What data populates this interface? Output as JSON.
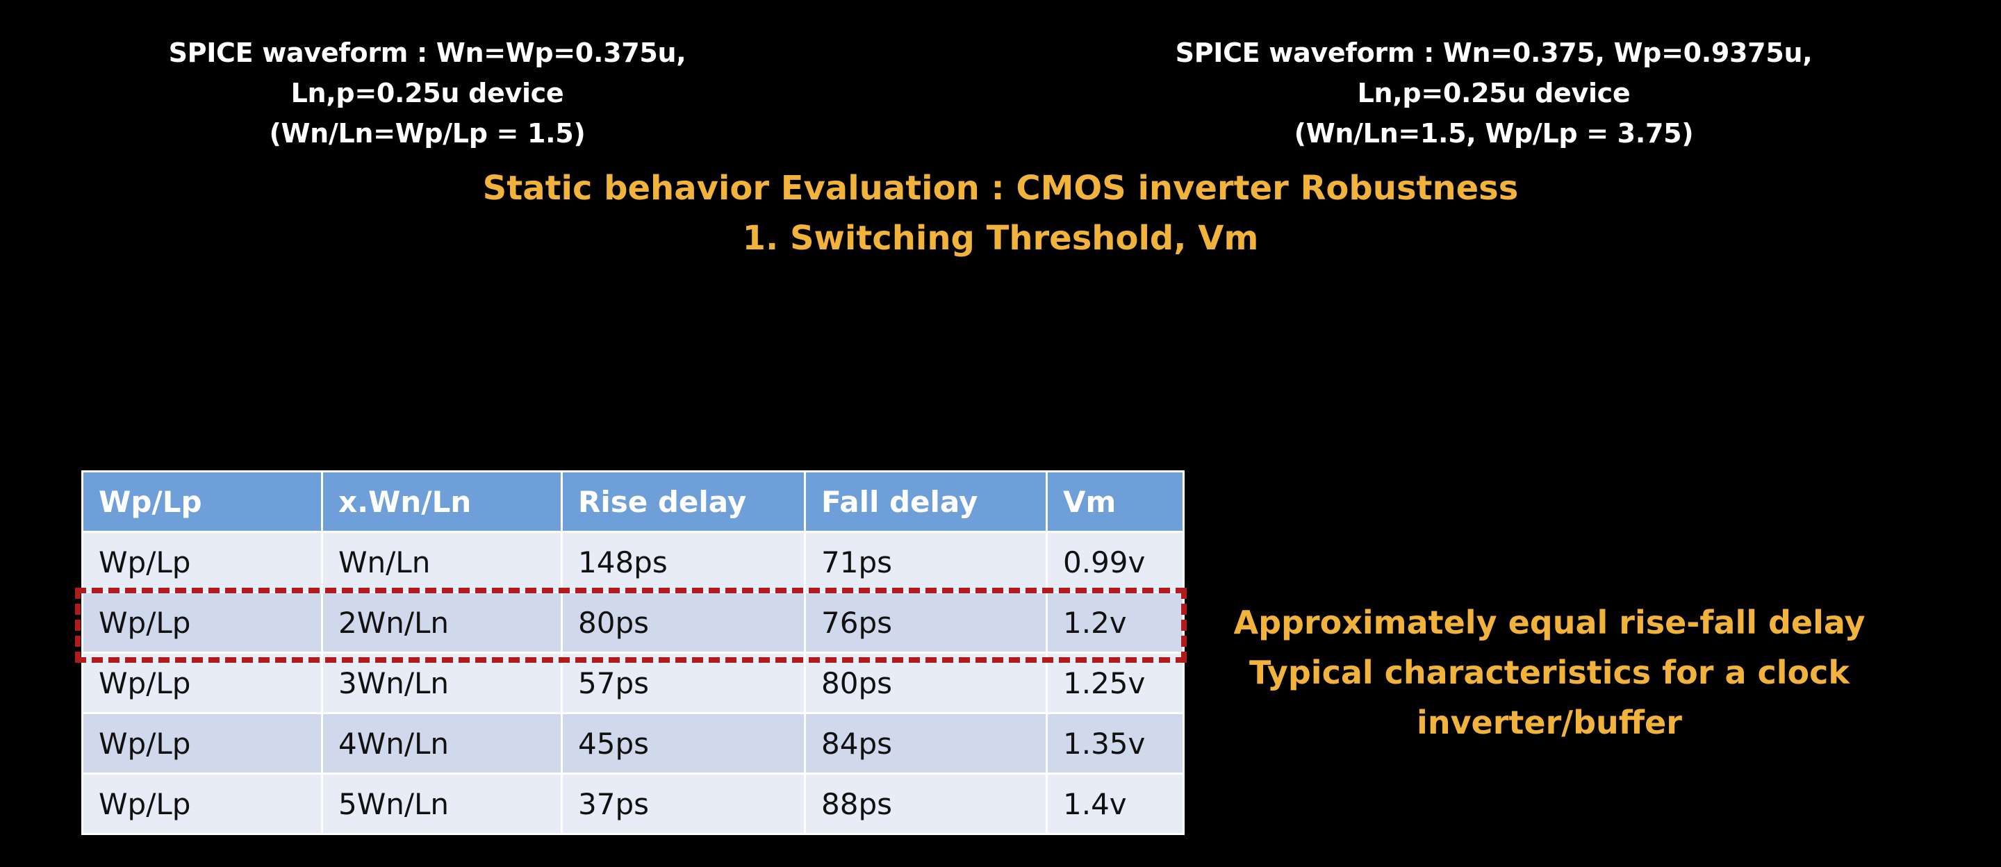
{
  "captions": {
    "left": {
      "line1": "SPICE waveform : Wn=Wp=0.375u,",
      "line2": "Ln,p=0.25u device",
      "line3": "(Wn/Ln=Wp/Lp = 1.5)"
    },
    "right": {
      "line1": "SPICE waveform : Wn=0.375, Wp=0.9375u,",
      "line2": "Ln,p=0.25u device",
      "line3": "(Wn/Ln=1.5, Wp/Lp = 3.75)"
    }
  },
  "title": {
    "line1": "Static behavior Evaluation : CMOS inverter Robustness",
    "line2": "1. Switching Threshold, Vm"
  },
  "table": {
    "headers": [
      "Wp/Lp",
      "x.Wn/Ln",
      "Rise delay",
      "Fall delay",
      "Vm"
    ],
    "rows": [
      [
        "Wp/Lp",
        "Wn/Ln",
        "148ps",
        "71ps",
        "0.99v"
      ],
      [
        "Wp/Lp",
        "2Wn/Ln",
        "80ps",
        "76ps",
        "1.2v"
      ],
      [
        "Wp/Lp",
        "3Wn/Ln",
        "57ps",
        "80ps",
        "1.25v"
      ],
      [
        "Wp/Lp",
        "4Wn/Ln",
        "45ps",
        "84ps",
        "1.35v"
      ],
      [
        "Wp/Lp",
        "5Wn/Ln",
        "37ps",
        "88ps",
        "1.4v"
      ]
    ],
    "highlighted_row": 1
  },
  "note": {
    "line1": "Approximately equal rise-fall delay",
    "line2": "Typical characteristics for a clock",
    "line3": "inverter/buffer"
  },
  "colors": {
    "background": "#000000",
    "title_accent": "#f2b33d",
    "header_fill": "#6f9fd8",
    "row_light": "#e7ecf6",
    "row_dark": "#d0d9ec",
    "highlight_border": "#b11b1b"
  }
}
